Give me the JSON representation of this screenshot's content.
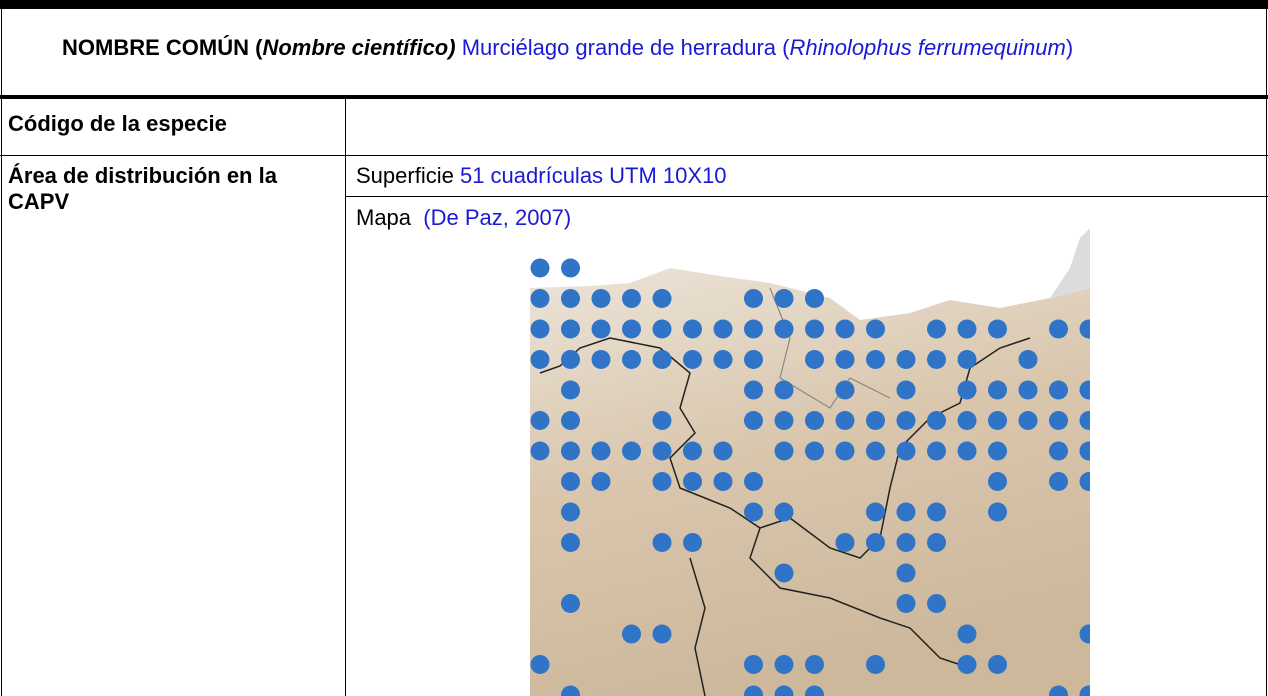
{
  "header": {
    "label": "NOMBRE COMÚN (",
    "label_italic": "Nombre científico)",
    "common_name": "Murciélago grande de herradura (",
    "scientific_name": "Rhinolophus ferrumequinum",
    "close": ")"
  },
  "rows": [
    {
      "label": "Código de la especie"
    },
    {
      "label": "Área de distribución en la CAPV",
      "surface_label": "Superficie",
      "surface_value": "51 cuadrículas UTM 10X10",
      "map_label": "Mapa",
      "map_source": "(De Paz, 2007)"
    }
  ]
}
